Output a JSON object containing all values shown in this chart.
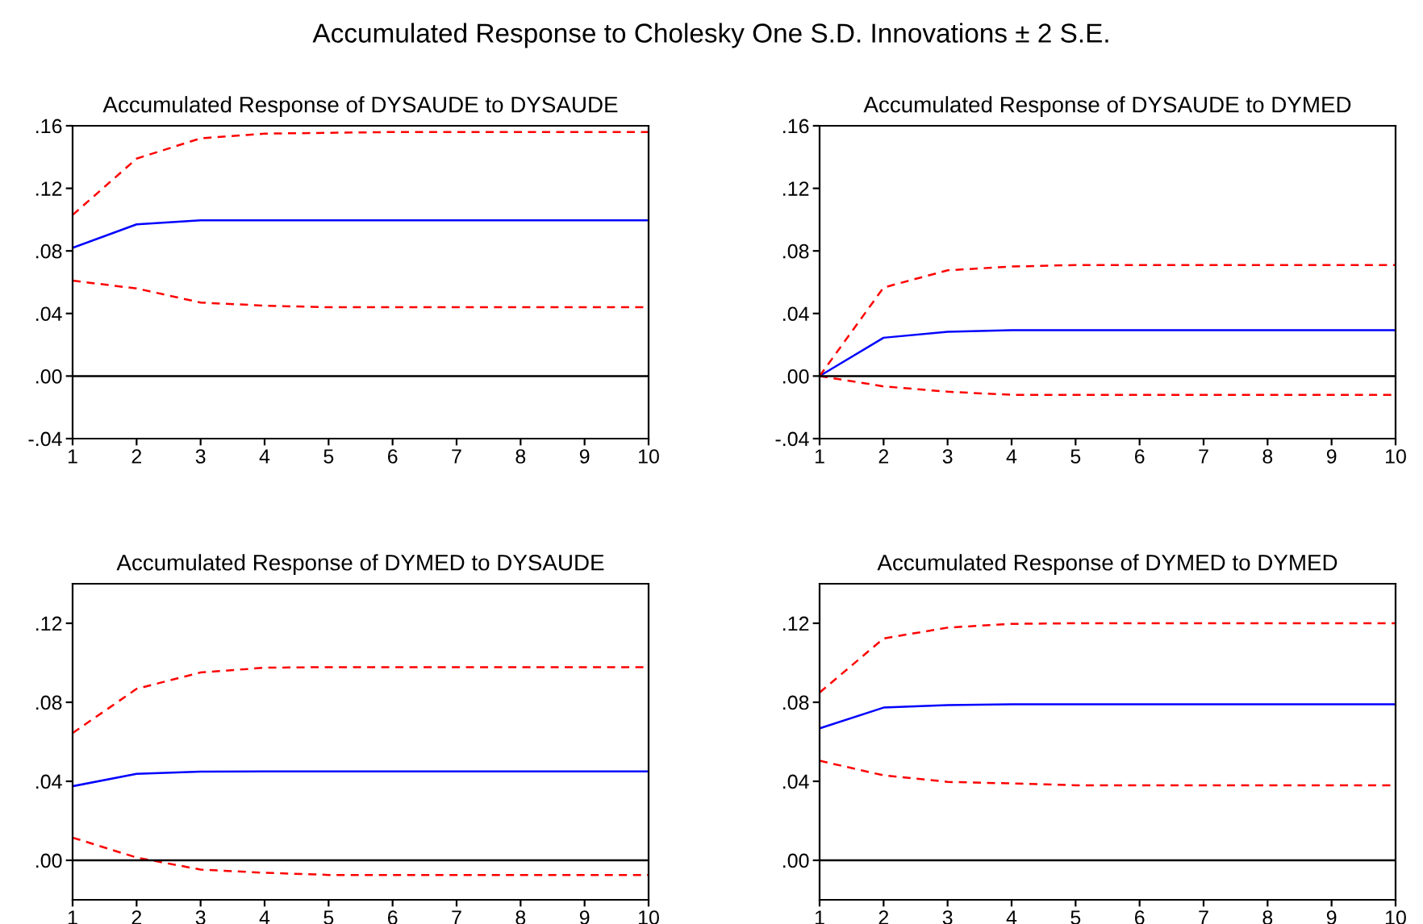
{
  "chart_data": [
    {
      "type": "line",
      "title": "Accumulated Response of DYSAUDE to DYSAUDE",
      "annotations": [
        "Accumulated Response to Cholesky One S.D. Innovations ± 2 S.E."
      ],
      "x": [
        1,
        2,
        3,
        4,
        5,
        6,
        7,
        8,
        9,
        10
      ],
      "xlim": [
        1,
        10
      ],
      "xticks": [
        1,
        2,
        3,
        4,
        5,
        6,
        7,
        8,
        9,
        10
      ],
      "ylim": [
        -0.04,
        0.16
      ],
      "yticks": [
        {
          "value": -0.04,
          "label": "-.04"
        },
        {
          "value": 0,
          "label": ".00"
        },
        {
          "value": 0.04,
          "label": ".04"
        },
        {
          "value": 0.08,
          "label": ".08"
        },
        {
          "value": 0.12,
          "label": ".12"
        },
        {
          "value": 0.16,
          "label": ".16"
        }
      ],
      "ref_lines": [
        {
          "axis": "y",
          "value": 0,
          "color": "#000000"
        }
      ],
      "grid": false,
      "legend": false,
      "series": [
        {
          "color": "#0000ff",
          "line_style": "solid",
          "values": [
            0.082,
            0.097,
            0.0995,
            0.0995,
            0.0995,
            0.0995,
            0.0995,
            0.0995,
            0.0995,
            0.0995
          ]
        },
        {
          "color": "#ff0000",
          "line_style": "dashed",
          "values": [
            0.103,
            0.139,
            0.152,
            0.155,
            0.1555,
            0.156,
            0.156,
            0.156,
            0.156,
            0.156
          ]
        },
        {
          "color": "#ff0000",
          "line_style": "dashed",
          "values": [
            0.061,
            0.056,
            0.047,
            0.045,
            0.044,
            0.044,
            0.044,
            0.044,
            0.044,
            0.044
          ]
        }
      ]
    },
    {
      "type": "line",
      "title": "Accumulated Response of DYSAUDE to DYMED",
      "x": [
        1,
        2,
        3,
        4,
        5,
        6,
        7,
        8,
        9,
        10
      ],
      "xlim": [
        1,
        10
      ],
      "xticks": [
        1,
        2,
        3,
        4,
        5,
        6,
        7,
        8,
        9,
        10
      ],
      "ylim": [
        -0.04,
        0.16
      ],
      "yticks": [
        {
          "value": -0.04,
          "label": "-.04"
        },
        {
          "value": 0,
          "label": ".00"
        },
        {
          "value": 0.04,
          "label": ".04"
        },
        {
          "value": 0.08,
          "label": ".08"
        },
        {
          "value": 0.12,
          "label": ".12"
        },
        {
          "value": 0.16,
          "label": ".16"
        }
      ],
      "ref_lines": [
        {
          "axis": "y",
          "value": 0,
          "color": "#000000"
        }
      ],
      "grid": false,
      "legend": false,
      "series": [
        {
          "color": "#0000ff",
          "line_style": "solid",
          "values": [
            0,
            0.0245,
            0.0283,
            0.0293,
            0.0293,
            0.0293,
            0.0293,
            0.0293,
            0.0293,
            0.0293
          ]
        },
        {
          "color": "#ff0000",
          "line_style": "dashed",
          "values": [
            0,
            0.0566,
            0.0676,
            0.07,
            0.071,
            0.071,
            0.071,
            0.071,
            0.071,
            0.071
          ]
        },
        {
          "color": "#ff0000",
          "line_style": "dashed",
          "values": [
            0,
            -0.0066,
            -0.01,
            -0.012,
            -0.012,
            -0.012,
            -0.012,
            -0.012,
            -0.012,
            -0.012
          ]
        }
      ]
    },
    {
      "type": "line",
      "title": "Accumulated Response of DYMED to DYSAUDE",
      "x": [
        1,
        2,
        3,
        4,
        5,
        6,
        7,
        8,
        9,
        10
      ],
      "xlim": [
        1,
        10
      ],
      "xticks": [
        1,
        2,
        3,
        4,
        5,
        6,
        7,
        8,
        9,
        10
      ],
      "ylim": [
        -0.02,
        0.14
      ],
      "yticks": [
        {
          "value": 0,
          "label": ".00"
        },
        {
          "value": 0.04,
          "label": ".04"
        },
        {
          "value": 0.08,
          "label": ".08"
        },
        {
          "value": 0.12,
          "label": ".12"
        }
      ],
      "ref_lines": [
        {
          "axis": "y",
          "value": 0,
          "color": "#000000"
        }
      ],
      "grid": false,
      "legend": false,
      "series": [
        {
          "color": "#0000ff",
          "line_style": "solid",
          "values": [
            0.0375,
            0.0438,
            0.0449,
            0.045,
            0.045,
            0.045,
            0.045,
            0.045,
            0.045,
            0.045
          ]
        },
        {
          "color": "#ff0000",
          "line_style": "dashed",
          "values": [
            0.0644,
            0.0868,
            0.0951,
            0.0975,
            0.0978,
            0.0978,
            0.0978,
            0.0978,
            0.0978,
            0.0978
          ]
        },
        {
          "color": "#ff0000",
          "line_style": "dashed",
          "values": [
            0.0115,
            0.0014,
            -0.0047,
            -0.0063,
            -0.0074,
            -0.0074,
            -0.0074,
            -0.0074,
            -0.0074,
            -0.0074
          ]
        }
      ]
    },
    {
      "type": "line",
      "title": "Accumulated Response of DYMED to DYMED",
      "x": [
        1,
        2,
        3,
        4,
        5,
        6,
        7,
        8,
        9,
        10
      ],
      "xlim": [
        1,
        10
      ],
      "xticks": [
        1,
        2,
        3,
        4,
        5,
        6,
        7,
        8,
        9,
        10
      ],
      "ylim": [
        -0.02,
        0.14
      ],
      "yticks": [
        {
          "value": 0,
          "label": ".00"
        },
        {
          "value": 0.04,
          "label": ".04"
        },
        {
          "value": 0.08,
          "label": ".08"
        },
        {
          "value": 0.12,
          "label": ".12"
        }
      ],
      "ref_lines": [
        {
          "axis": "y",
          "value": 0,
          "color": "#000000"
        }
      ],
      "grid": false,
      "legend": false,
      "series": [
        {
          "color": "#0000ff",
          "line_style": "solid",
          "values": [
            0.0668,
            0.0773,
            0.0786,
            0.079,
            0.079,
            0.079,
            0.079,
            0.079,
            0.079,
            0.079
          ]
        },
        {
          "color": "#ff0000",
          "line_style": "dashed",
          "values": [
            0.0849,
            0.1123,
            0.1178,
            0.1197,
            0.12,
            0.12,
            0.12,
            0.12,
            0.12,
            0.12
          ]
        },
        {
          "color": "#ff0000",
          "line_style": "dashed",
          "values": [
            0.0504,
            0.043,
            0.0397,
            0.0389,
            0.038,
            0.038,
            0.038,
            0.038,
            0.038,
            0.038
          ]
        }
      ]
    }
  ]
}
